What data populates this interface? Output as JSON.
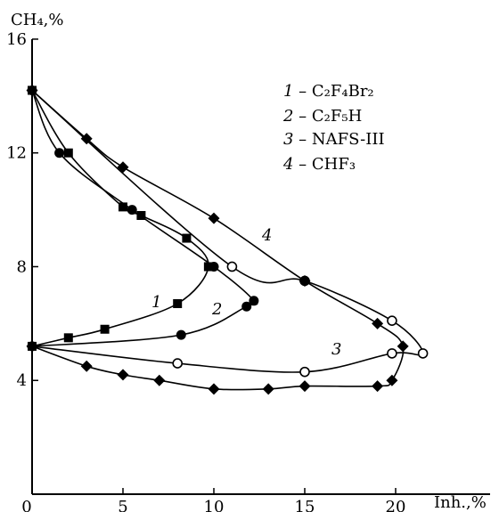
{
  "chart_data": {
    "type": "line",
    "xlabel": "Inh.,%",
    "ylabel": "CH₄,%",
    "xlim": [
      0,
      25
    ],
    "ylim": [
      0,
      16
    ],
    "x_ticks": [
      "0",
      "5",
      "10",
      "15",
      "20"
    ],
    "y_ticks": [
      "4",
      "8",
      "12",
      "16"
    ],
    "legend_position": "top-right",
    "legend": [
      {
        "num": "1",
        "name": "C₂F₄Br₂"
      },
      {
        "num": "2",
        "name": "C₂F₅H"
      },
      {
        "num": "3",
        "name": "NAFS-III"
      },
      {
        "num": "4",
        "name": "CHF₃"
      }
    ],
    "series": [
      {
        "curve_label": "1",
        "marker": "square",
        "points": [
          [
            0,
            14.2
          ],
          [
            2,
            12
          ],
          [
            5,
            10.1
          ],
          [
            6,
            9.8
          ],
          [
            8.5,
            9
          ],
          [
            9.7,
            8
          ],
          [
            8,
            6.7
          ],
          [
            4,
            5.8
          ],
          [
            2,
            5.5
          ],
          [
            0,
            5.2
          ]
        ]
      },
      {
        "curve_label": "2",
        "marker": "circle",
        "points": [
          [
            0,
            14.2
          ],
          [
            1.5,
            12
          ],
          [
            5.5,
            10
          ],
          [
            10,
            8
          ],
          [
            12.2,
            6.8
          ],
          [
            11.8,
            6.6
          ],
          [
            8.2,
            5.6
          ],
          [
            0,
            5.2
          ]
        ]
      },
      {
        "curve_label": "3",
        "marker": "open-circle",
        "points": [
          [
            0,
            14.2
          ],
          [
            11,
            8
          ],
          [
            15,
            7.5
          ],
          [
            19.8,
            6.1
          ],
          [
            21.5,
            4.95
          ],
          [
            19.8,
            4.95
          ],
          [
            15,
            4.3
          ],
          [
            8,
            4.6
          ],
          [
            0,
            5.2
          ]
        ]
      },
      {
        "curve_label": "4",
        "marker": "diamond",
        "points": [
          [
            0,
            14.2
          ],
          [
            3,
            12.5
          ],
          [
            5,
            11.5
          ],
          [
            10,
            9.7
          ],
          [
            15,
            7.5
          ],
          [
            19,
            6
          ],
          [
            20.4,
            5.2
          ],
          [
            19.8,
            4
          ],
          [
            19,
            3.8
          ],
          [
            15,
            3.8
          ],
          [
            13,
            3.7
          ],
          [
            10,
            3.7
          ],
          [
            7,
            4
          ],
          [
            5,
            4.2
          ],
          [
            3,
            4.5
          ],
          [
            0,
            5.2
          ]
        ]
      }
    ]
  }
}
